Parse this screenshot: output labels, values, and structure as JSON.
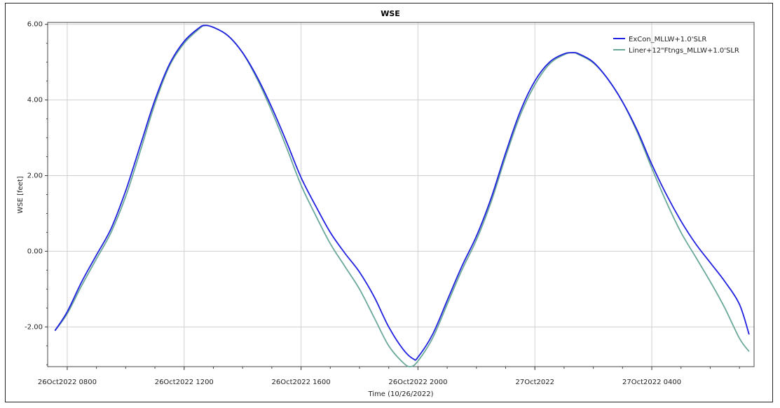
{
  "chart_data": {
    "type": "line",
    "title": "WSE",
    "xlabel": "Time (10/26/2022)",
    "ylabel": "WSE [feet]",
    "x_unit": "hours",
    "xlim": [
      7.33,
      31.5
    ],
    "ylim": [
      -3.05,
      6.05
    ],
    "y_ticks": [
      -2.0,
      0.0,
      2.0,
      4.0,
      6.0
    ],
    "y_tick_labels": [
      "-2.00",
      "0.00",
      "2.00",
      "4.00",
      "6.00"
    ],
    "x_ticks": [
      8,
      12,
      16,
      20,
      24,
      28
    ],
    "x_tick_labels": [
      "26Oct2022 0800",
      "26Oct2022 1200",
      "26Oct2022 1600",
      "26Oct2022 2000",
      "27Oct2022",
      "27Oct2022 0400"
    ],
    "grid": true,
    "legend_position": "top-right",
    "series": [
      {
        "name": "ExCon_MLLW+1.0'SLR",
        "color": "#2020e0",
        "points": [
          [
            7.58,
            -2.1
          ],
          [
            8.0,
            -1.6
          ],
          [
            8.5,
            -0.8
          ],
          [
            9.0,
            -0.1
          ],
          [
            9.5,
            0.6
          ],
          [
            10.0,
            1.6
          ],
          [
            10.5,
            2.8
          ],
          [
            11.0,
            4.0
          ],
          [
            11.5,
            4.95
          ],
          [
            12.0,
            5.55
          ],
          [
            12.5,
            5.9
          ],
          [
            12.7,
            5.97
          ],
          [
            13.0,
            5.92
          ],
          [
            13.5,
            5.7
          ],
          [
            14.0,
            5.25
          ],
          [
            14.5,
            4.6
          ],
          [
            15.0,
            3.8
          ],
          [
            15.5,
            2.9
          ],
          [
            16.0,
            1.95
          ],
          [
            16.5,
            1.2
          ],
          [
            17.0,
            0.5
          ],
          [
            17.5,
            -0.05
          ],
          [
            18.0,
            -0.55
          ],
          [
            18.5,
            -1.2
          ],
          [
            19.0,
            -2.0
          ],
          [
            19.5,
            -2.6
          ],
          [
            19.85,
            -2.85
          ],
          [
            20.0,
            -2.8
          ],
          [
            20.5,
            -2.2
          ],
          [
            21.0,
            -1.3
          ],
          [
            21.5,
            -0.4
          ],
          [
            22.0,
            0.4
          ],
          [
            22.5,
            1.4
          ],
          [
            23.0,
            2.6
          ],
          [
            23.5,
            3.7
          ],
          [
            24.0,
            4.5
          ],
          [
            24.5,
            5.0
          ],
          [
            25.0,
            5.22
          ],
          [
            25.3,
            5.25
          ],
          [
            25.5,
            5.22
          ],
          [
            26.0,
            5.0
          ],
          [
            26.5,
            4.55
          ],
          [
            27.0,
            3.95
          ],
          [
            27.5,
            3.2
          ],
          [
            28.0,
            2.3
          ],
          [
            28.5,
            1.5
          ],
          [
            29.0,
            0.8
          ],
          [
            29.5,
            0.2
          ],
          [
            30.0,
            -0.3
          ],
          [
            30.5,
            -0.8
          ],
          [
            31.0,
            -1.4
          ],
          [
            31.33,
            -2.2
          ]
        ]
      },
      {
        "name": "Liner+12\"Ftngs_MLLW+1.0'SLR",
        "color": "#6aa89a",
        "points": [
          [
            7.58,
            -2.1
          ],
          [
            8.0,
            -1.65
          ],
          [
            8.5,
            -0.9
          ],
          [
            9.0,
            -0.2
          ],
          [
            9.5,
            0.5
          ],
          [
            10.0,
            1.45
          ],
          [
            10.5,
            2.65
          ],
          [
            11.0,
            3.9
          ],
          [
            11.5,
            4.9
          ],
          [
            12.0,
            5.5
          ],
          [
            12.5,
            5.87
          ],
          [
            12.7,
            5.97
          ],
          [
            13.0,
            5.92
          ],
          [
            13.5,
            5.7
          ],
          [
            14.0,
            5.25
          ],
          [
            14.5,
            4.55
          ],
          [
            15.0,
            3.7
          ],
          [
            15.5,
            2.75
          ],
          [
            16.0,
            1.75
          ],
          [
            16.5,
            0.95
          ],
          [
            17.0,
            0.2
          ],
          [
            17.5,
            -0.4
          ],
          [
            18.0,
            -1.0
          ],
          [
            18.5,
            -1.75
          ],
          [
            19.0,
            -2.5
          ],
          [
            19.5,
            -2.95
          ],
          [
            19.75,
            -3.05
          ],
          [
            20.0,
            -2.9
          ],
          [
            20.5,
            -2.3
          ],
          [
            21.0,
            -1.4
          ],
          [
            21.5,
            -0.5
          ],
          [
            22.0,
            0.3
          ],
          [
            22.5,
            1.3
          ],
          [
            23.0,
            2.5
          ],
          [
            23.5,
            3.6
          ],
          [
            24.0,
            4.4
          ],
          [
            24.5,
            4.95
          ],
          [
            25.0,
            5.2
          ],
          [
            25.3,
            5.25
          ],
          [
            25.5,
            5.2
          ],
          [
            26.0,
            4.98
          ],
          [
            26.5,
            4.55
          ],
          [
            27.0,
            3.95
          ],
          [
            27.5,
            3.15
          ],
          [
            28.0,
            2.2
          ],
          [
            28.5,
            1.3
          ],
          [
            29.0,
            0.5
          ],
          [
            29.5,
            -0.15
          ],
          [
            30.0,
            -0.8
          ],
          [
            30.5,
            -1.5
          ],
          [
            31.0,
            -2.3
          ],
          [
            31.33,
            -2.65
          ]
        ]
      }
    ]
  }
}
